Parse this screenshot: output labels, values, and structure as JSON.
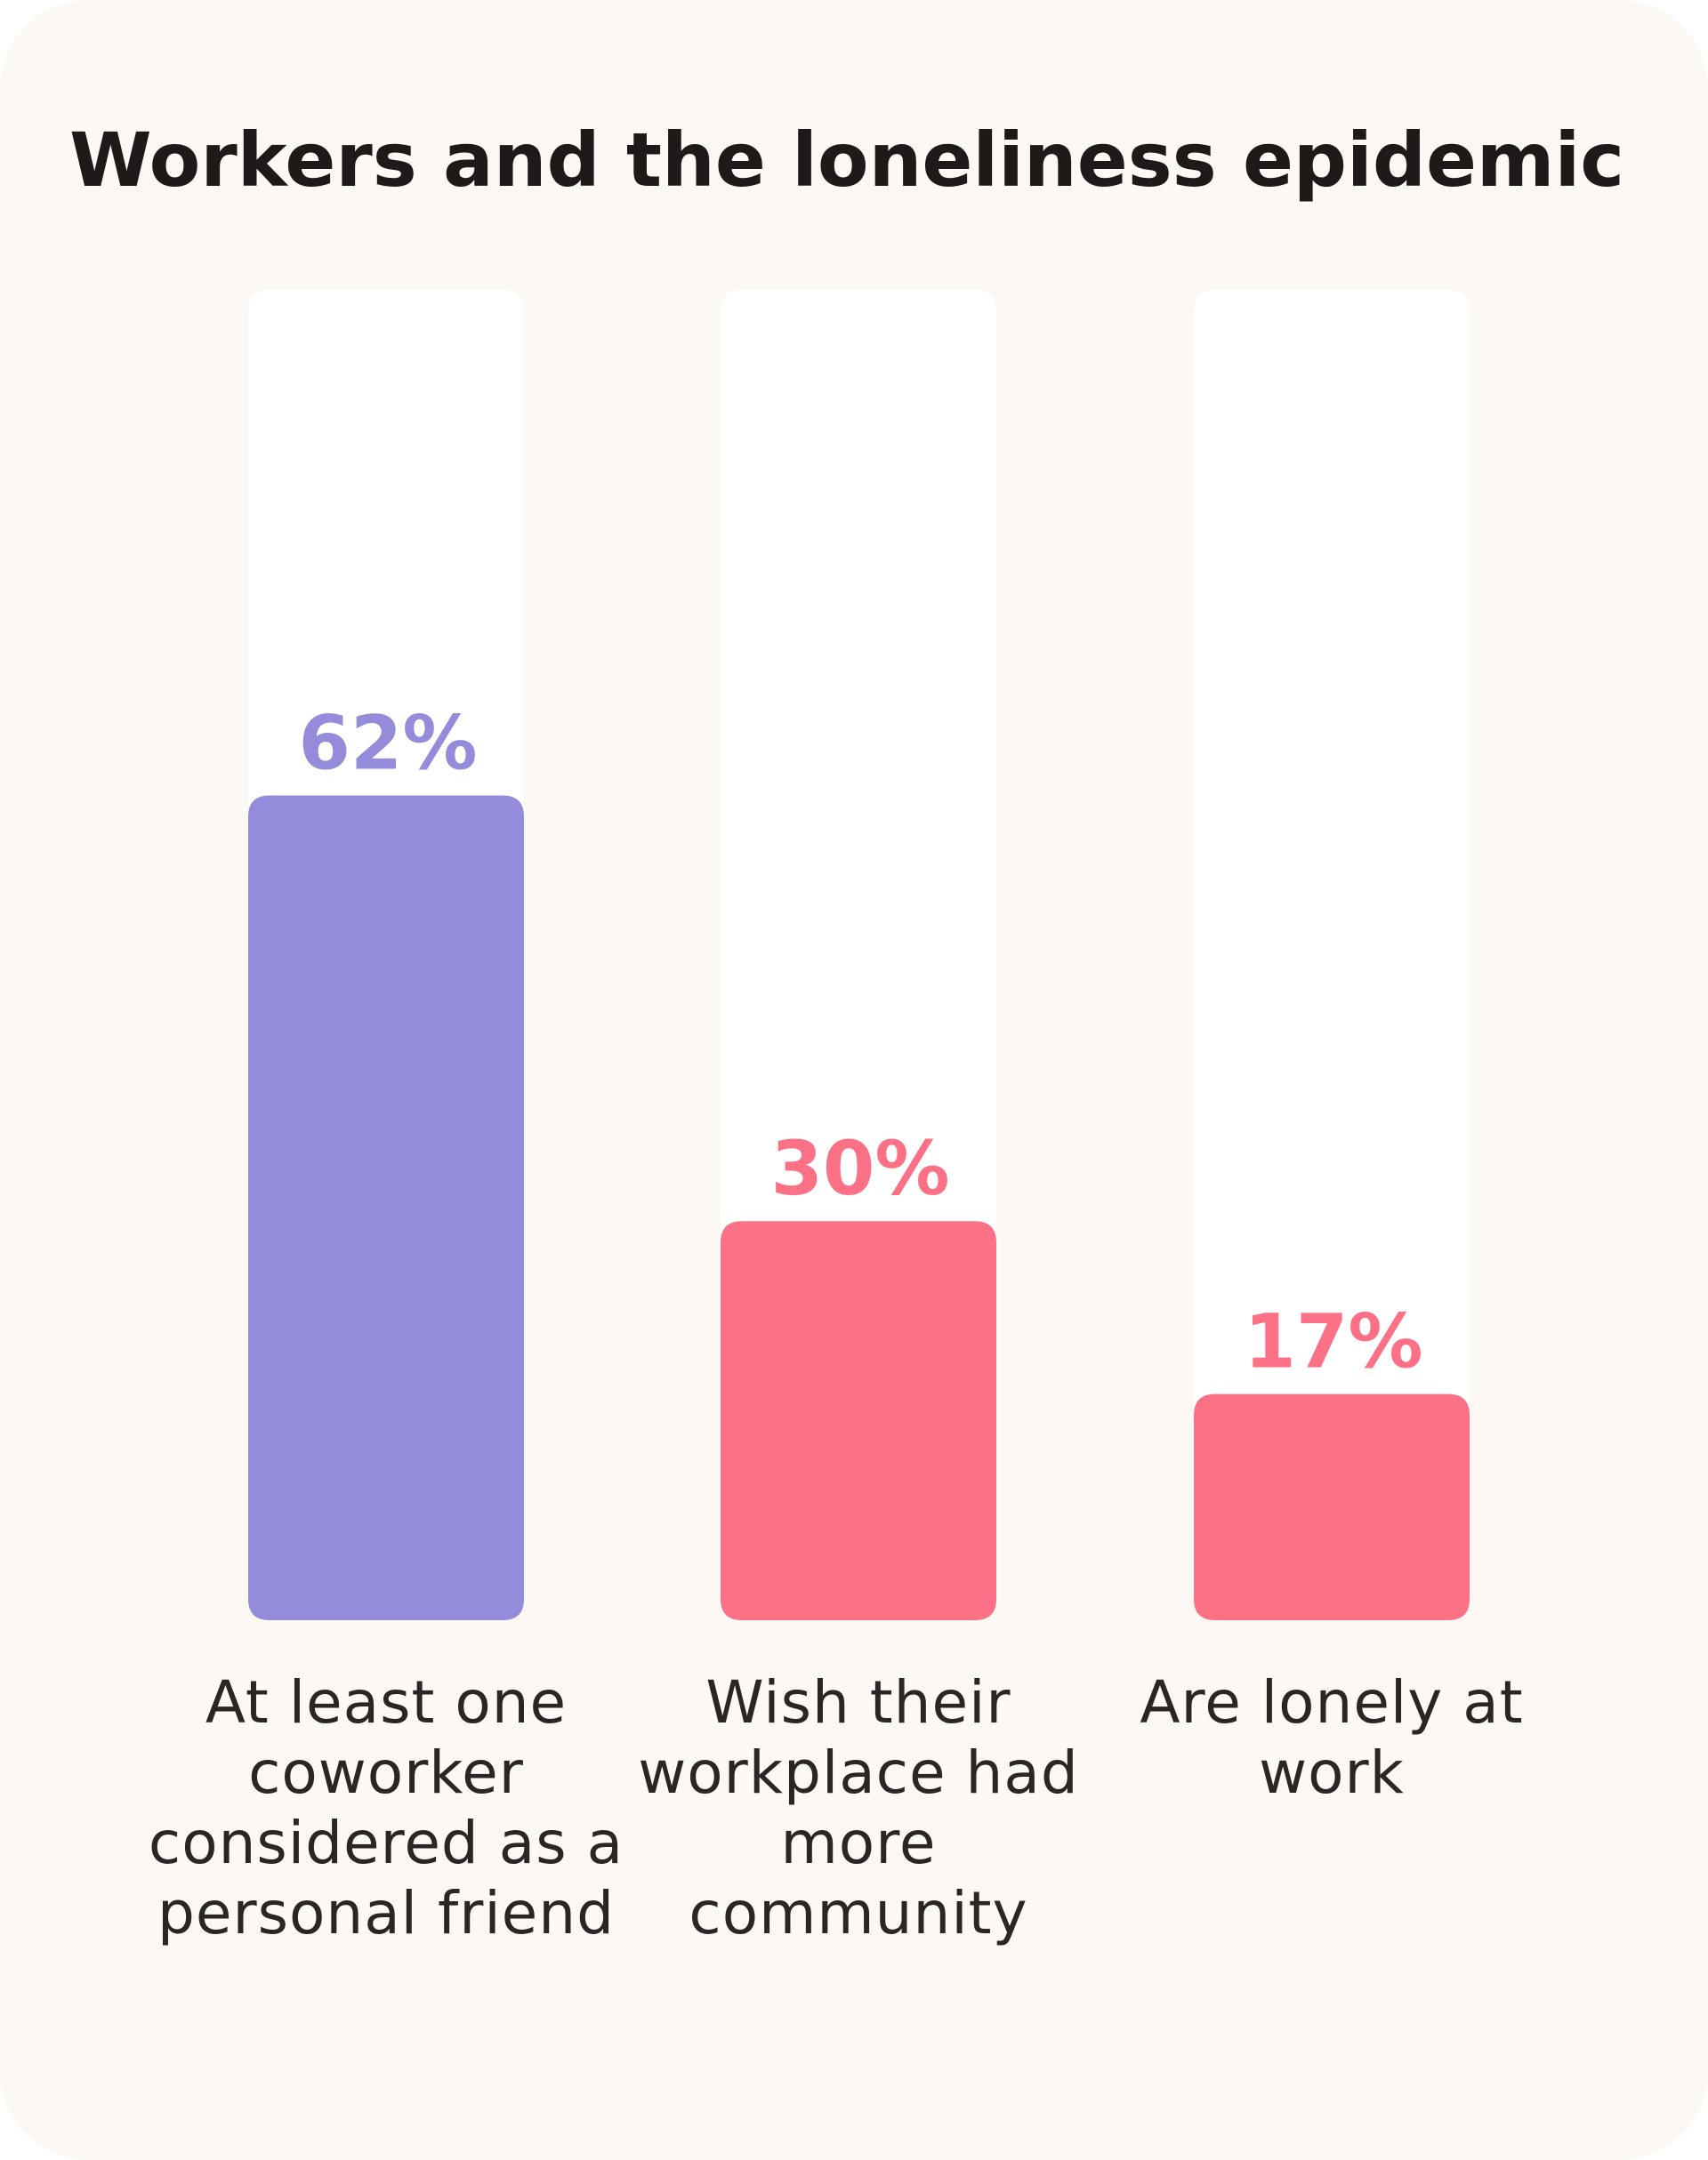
{
  "chart_data": {
    "type": "bar",
    "title": "Workers and the loneliness epidemic",
    "categories": [
      "At least one coworker considered as a personal friend",
      "Wish their workplace had more community",
      "Are lonely at work"
    ],
    "values": [
      62,
      30,
      17
    ],
    "value_labels": [
      "62%",
      "30%",
      "17%"
    ],
    "colors": [
      "#948cdb",
      "#fd7186",
      "#fd7186"
    ],
    "label_colors": [
      "#948cdb",
      "#fd7186",
      "#fd7186"
    ],
    "track_color": "#ffffff",
    "ylim": [
      0,
      100
    ],
    "grid": false,
    "legend": "none"
  }
}
